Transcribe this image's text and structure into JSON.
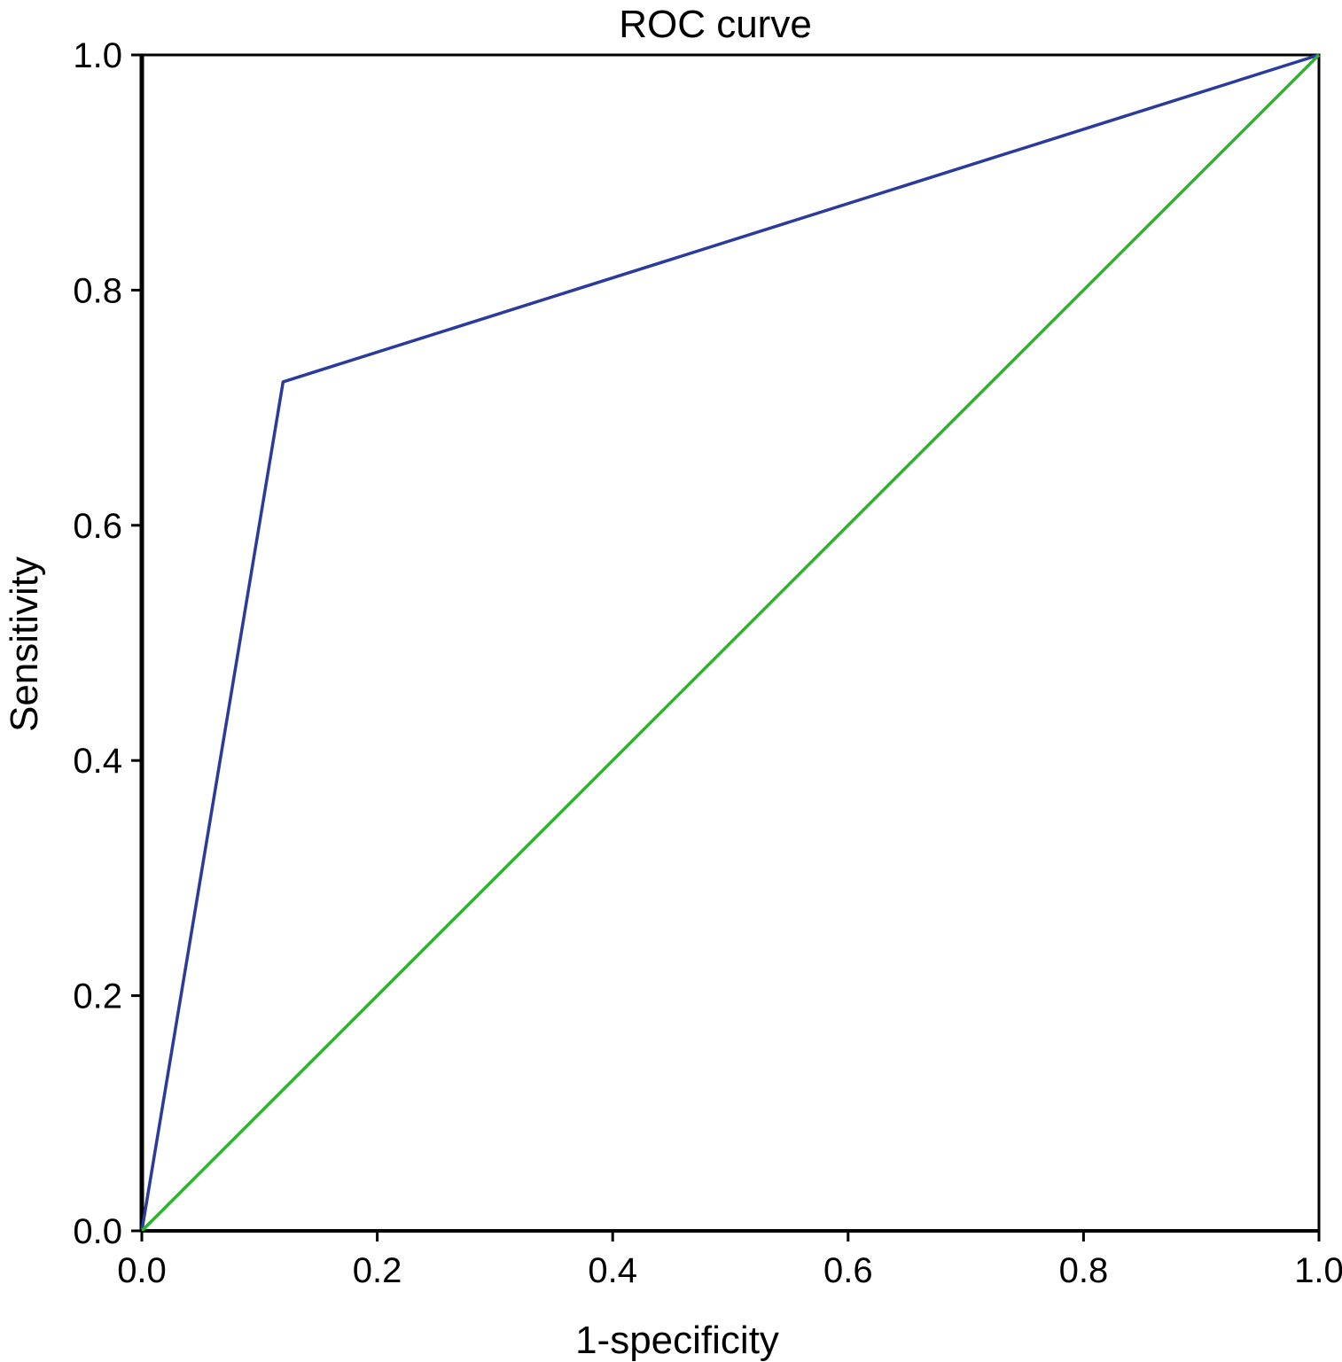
{
  "chart_data": {
    "type": "line",
    "title": "ROC curve",
    "xlabel": "1-specificity",
    "ylabel": "Sensitivity",
    "xlim": [
      0,
      1
    ],
    "ylim": [
      0,
      1
    ],
    "x_ticks": [
      "0.0",
      "0.2",
      "0.4",
      "0.6",
      "0.8",
      "1.0"
    ],
    "y_ticks": [
      "0.0",
      "0.2",
      "0.4",
      "0.6",
      "0.8",
      "1.0"
    ],
    "grid": false,
    "legend": "none",
    "series": [
      {
        "color": "#2b3b9c",
        "x": [
          0.0,
          0.12,
          1.0
        ],
        "y": [
          0.0,
          0.722,
          1.0
        ]
      },
      {
        "color": "#2cb52c",
        "x": [
          0.0,
          1.0
        ],
        "y": [
          0.0,
          1.0
        ]
      }
    ]
  }
}
